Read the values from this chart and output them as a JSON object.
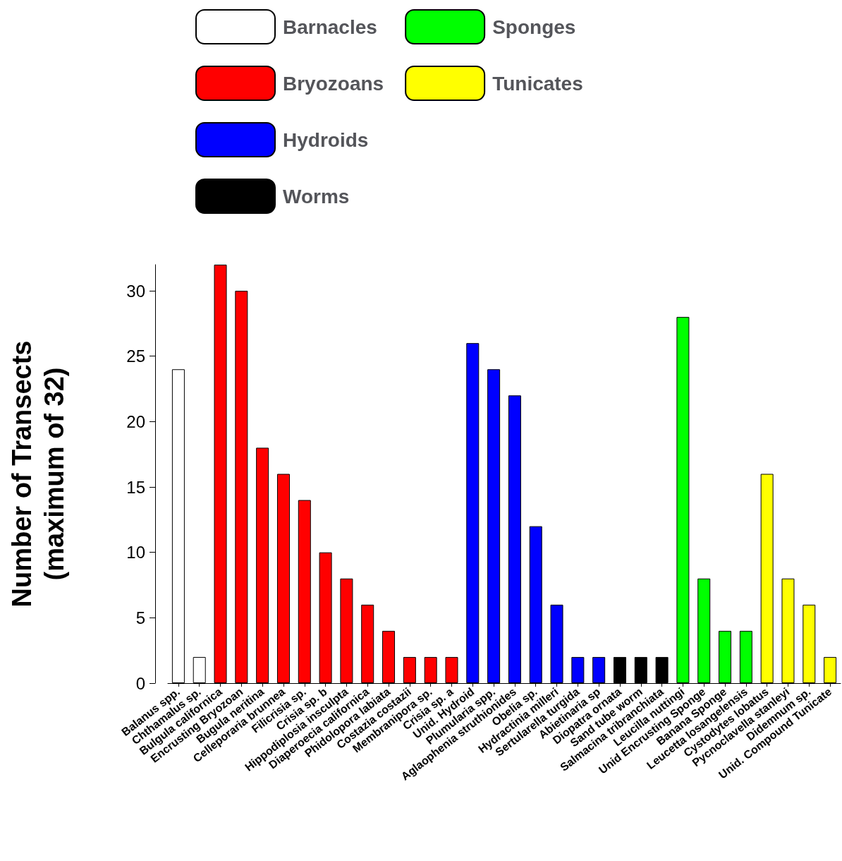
{
  "chart_data": {
    "type": "bar",
    "ylabel": "Number of Transects\n(maximum of 32)",
    "categories": [
      "Balanus spp.",
      "Chthamalus sp.",
      "Bulgula californica",
      "Encrusting Bryozoan",
      "Bugula neritina",
      "Celleporaria brunnea",
      "Filicrisia sp.",
      "Crisia sp. b",
      "Hippodiplosia insculpta",
      "Diaperoecia californica",
      "Phidolopora labiata",
      "Costazia costazii",
      "Membranipora sp.",
      "Crisia sp. a",
      "Unid. Hydroid",
      "Plumularia spp.",
      "Aglaophenia struthionides",
      "Obelia sp.",
      "Hydractinia milleri",
      "Sertularella turgida",
      "Abietinaria sp",
      "Diopatra ornata",
      "Sand tube worm",
      "Salmacina tribranchiata",
      "Leucilla nuttingi",
      "Unid Encrusting Sponge",
      "Banana Sponge",
      "Leucetta losangelensis",
      "Cystodytes lobatus",
      "Pycnoclavella stanleyi",
      "Didemnum sp.",
      "Unid. Compound Tunicate"
    ],
    "series": [
      {
        "name": "Barnacles",
        "color": "#ffffff",
        "values": [
          24,
          2,
          null,
          null,
          null,
          null,
          null,
          null,
          null,
          null,
          null,
          null,
          null,
          null,
          null,
          null,
          null,
          null,
          null,
          null,
          null,
          null,
          null,
          null,
          null,
          null,
          null,
          null,
          null,
          null,
          null,
          null
        ]
      },
      {
        "name": "Bryozoans",
        "color": "#ff0000",
        "values": [
          null,
          null,
          32,
          30,
          18,
          16,
          14,
          10,
          8,
          6,
          4,
          2,
          2,
          2,
          null,
          null,
          null,
          null,
          null,
          null,
          null,
          null,
          null,
          null,
          null,
          null,
          null,
          null,
          null,
          null,
          null,
          null
        ]
      },
      {
        "name": "Hydroids",
        "color": "#0000ff",
        "values": [
          null,
          null,
          null,
          null,
          null,
          null,
          null,
          null,
          null,
          null,
          null,
          null,
          null,
          null,
          26,
          24,
          22,
          12,
          6,
          2,
          2,
          null,
          null,
          null,
          null,
          null,
          null,
          null,
          null,
          null,
          null,
          null
        ]
      },
      {
        "name": "Worms",
        "color": "#000000",
        "values": [
          null,
          null,
          null,
          null,
          null,
          null,
          null,
          null,
          null,
          null,
          null,
          null,
          null,
          null,
          null,
          null,
          null,
          null,
          null,
          null,
          null,
          2,
          2,
          2,
          null,
          null,
          null,
          null,
          null,
          null,
          null,
          null
        ]
      },
      {
        "name": "Sponges",
        "color": "#00ff00",
        "values": [
          null,
          null,
          null,
          null,
          null,
          null,
          null,
          null,
          null,
          null,
          null,
          null,
          null,
          null,
          null,
          null,
          null,
          null,
          null,
          null,
          null,
          null,
          null,
          null,
          28,
          8,
          4,
          4,
          null,
          null,
          null,
          null
        ]
      },
      {
        "name": "Tunicates",
        "color": "#ffff00",
        "values": [
          null,
          null,
          null,
          null,
          null,
          null,
          null,
          null,
          null,
          null,
          null,
          null,
          null,
          null,
          null,
          null,
          null,
          null,
          null,
          null,
          null,
          null,
          null,
          null,
          null,
          null,
          null,
          null,
          16,
          8,
          6,
          2
        ]
      }
    ],
    "ylim": [
      0,
      32
    ],
    "yticks": [
      0,
      5,
      10,
      15,
      20,
      25,
      30
    ],
    "grid": false,
    "legend": "top"
  }
}
